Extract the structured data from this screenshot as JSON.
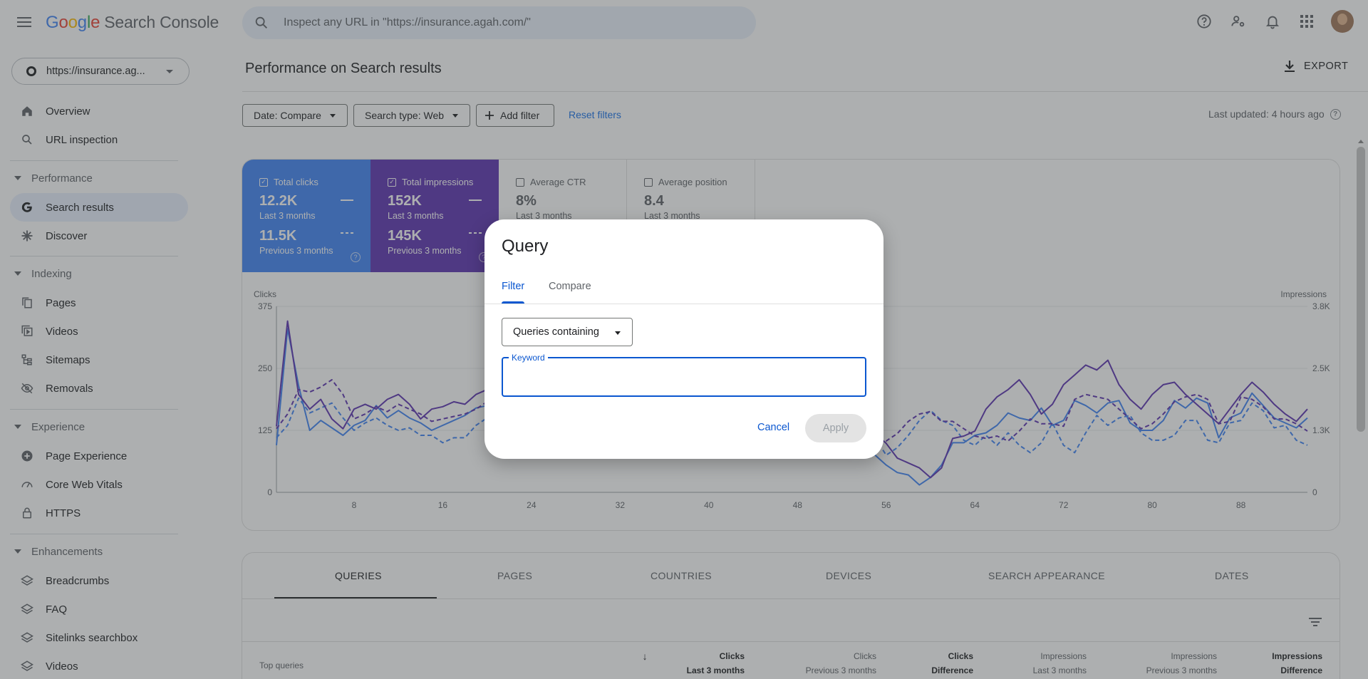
{
  "header": {
    "logo_google": [
      "G",
      "o",
      "o",
      "g",
      "l",
      "e"
    ],
    "product": "Search Console",
    "search_placeholder": "Inspect any URL in \"https://insurance.agah.com/\"",
    "icons": [
      "help-icon",
      "manage-users-icon",
      "notifications-icon",
      "apps-grid-icon"
    ]
  },
  "sidebar": {
    "property": "https://insurance.ag...",
    "top_items": [
      {
        "label": "Overview",
        "icon": "home-icon"
      },
      {
        "label": "URL inspection",
        "icon": "search-icon"
      }
    ],
    "sections": [
      {
        "title": "Performance",
        "items": [
          {
            "label": "Search results",
            "icon": "google-g-icon",
            "active": true
          },
          {
            "label": "Discover",
            "icon": "discover-asterisk-icon"
          }
        ]
      },
      {
        "title": "Indexing",
        "items": [
          {
            "label": "Pages",
            "icon": "pages-icon"
          },
          {
            "label": "Videos",
            "icon": "video-icon"
          },
          {
            "label": "Sitemaps",
            "icon": "sitemap-icon"
          },
          {
            "label": "Removals",
            "icon": "removals-eye-icon"
          }
        ]
      },
      {
        "title": "Experience",
        "items": [
          {
            "label": "Page Experience",
            "icon": "plus-circle-icon"
          },
          {
            "label": "Core Web Vitals",
            "icon": "speedometer-icon"
          },
          {
            "label": "HTTPS",
            "icon": "lock-icon"
          }
        ]
      },
      {
        "title": "Enhancements",
        "items": [
          {
            "label": "Breadcrumbs",
            "icon": "layers-icon"
          },
          {
            "label": "FAQ",
            "icon": "layers-icon"
          },
          {
            "label": "Sitelinks searchbox",
            "icon": "layers-icon"
          },
          {
            "label": "Videos",
            "icon": "layers-icon"
          }
        ]
      }
    ]
  },
  "main": {
    "title": "Performance on Search results",
    "export_label": "EXPORT",
    "filters": {
      "date": "Date: Compare",
      "search_type": "Search type: Web",
      "add_filter": "Add filter",
      "reset": "Reset filters",
      "last_updated": "Last updated: 4 hours ago"
    },
    "metrics": {
      "clicks": {
        "label": "Total clicks",
        "current": "12.2K",
        "current_period": "Last 3 months",
        "previous": "11.5K",
        "previous_period": "Previous 3 months",
        "color": "#4285f4"
      },
      "impressions": {
        "label": "Total impressions",
        "current": "152K",
        "current_period": "Last 3 months",
        "previous": "145K",
        "previous_period": "Previous 3 months",
        "color": "#5e35b1"
      },
      "ctr": {
        "label": "Average CTR",
        "current": "8%",
        "current_period": "Last 3 months"
      },
      "position": {
        "label": "Average position",
        "current": "8.4",
        "current_period": "Last 3 months"
      }
    }
  },
  "chart_data": {
    "type": "line",
    "left_axis_label": "Clicks",
    "right_axis_label": "Impressions",
    "y_ticks": [
      "375",
      "250",
      "125",
      "0"
    ],
    "y2_ticks": [
      "3.8K",
      "2.5K",
      "1.3K",
      "0"
    ],
    "ylim": [
      0,
      375
    ],
    "y2lim": [
      0,
      3800
    ],
    "x_ticks": [
      8,
      16,
      24,
      32,
      40,
      48,
      56,
      64,
      72,
      80,
      88
    ],
    "xlim": [
      1,
      94
    ],
    "series": [
      {
        "key": "clicks_current",
        "color": "#4285f4",
        "dashed": false,
        "axis": "left",
        "points": [
          [
            1,
            95
          ],
          [
            2,
            330
          ],
          [
            3,
            215
          ],
          [
            4,
            125
          ],
          [
            5,
            145
          ],
          [
            6,
            130
          ],
          [
            7,
            115
          ],
          [
            8,
            135
          ],
          [
            9,
            145
          ],
          [
            10,
            175
          ],
          [
            11,
            150
          ],
          [
            12,
            165
          ],
          [
            13,
            150
          ],
          [
            14,
            140
          ],
          [
            15,
            125
          ],
          [
            16,
            135
          ],
          [
            17,
            145
          ],
          [
            18,
            155
          ],
          [
            19,
            170
          ],
          [
            20,
            175
          ],
          [
            53,
            150
          ],
          [
            54,
            110
          ],
          [
            55,
            75
          ],
          [
            56,
            55
          ],
          [
            57,
            40
          ],
          [
            58,
            35
          ],
          [
            59,
            15
          ],
          [
            60,
            30
          ],
          [
            61,
            55
          ],
          [
            62,
            100
          ],
          [
            63,
            100
          ],
          [
            64,
            115
          ],
          [
            65,
            120
          ],
          [
            66,
            135
          ],
          [
            67,
            160
          ],
          [
            68,
            150
          ],
          [
            69,
            145
          ],
          [
            70,
            170
          ],
          [
            71,
            135
          ],
          [
            72,
            145
          ],
          [
            73,
            185
          ],
          [
            74,
            175
          ],
          [
            75,
            160
          ],
          [
            76,
            180
          ],
          [
            77,
            185
          ],
          [
            78,
            140
          ],
          [
            79,
            125
          ],
          [
            80,
            125
          ],
          [
            81,
            145
          ],
          [
            82,
            185
          ],
          [
            83,
            170
          ],
          [
            84,
            190
          ],
          [
            85,
            180
          ],
          [
            86,
            110
          ],
          [
            87,
            150
          ],
          [
            88,
            160
          ],
          [
            89,
            200
          ],
          [
            90,
            175
          ],
          [
            91,
            150
          ],
          [
            92,
            140
          ],
          [
            93,
            130
          ],
          [
            94,
            150
          ]
        ]
      },
      {
        "key": "clicks_previous",
        "color": "#4285f4",
        "dashed": true,
        "axis": "left",
        "points": [
          [
            1,
            110
          ],
          [
            2,
            135
          ],
          [
            3,
            190
          ],
          [
            4,
            160
          ],
          [
            5,
            170
          ],
          [
            6,
            180
          ],
          [
            7,
            150
          ],
          [
            8,
            125
          ],
          [
            9,
            140
          ],
          [
            10,
            150
          ],
          [
            11,
            135
          ],
          [
            12,
            125
          ],
          [
            13,
            130
          ],
          [
            14,
            115
          ],
          [
            15,
            115
          ],
          [
            16,
            100
          ],
          [
            17,
            110
          ],
          [
            18,
            110
          ],
          [
            19,
            135
          ],
          [
            20,
            150
          ],
          [
            53,
            145
          ],
          [
            54,
            130
          ],
          [
            55,
            110
          ],
          [
            56,
            75
          ],
          [
            57,
            90
          ],
          [
            58,
            115
          ],
          [
            59,
            145
          ],
          [
            60,
            165
          ],
          [
            61,
            145
          ],
          [
            62,
            135
          ],
          [
            63,
            105
          ],
          [
            64,
            95
          ],
          [
            65,
            115
          ],
          [
            66,
            95
          ],
          [
            67,
            120
          ],
          [
            68,
            95
          ],
          [
            69,
            80
          ],
          [
            70,
            100
          ],
          [
            71,
            140
          ],
          [
            72,
            95
          ],
          [
            73,
            80
          ],
          [
            74,
            120
          ],
          [
            75,
            155
          ],
          [
            76,
            135
          ],
          [
            77,
            150
          ],
          [
            78,
            155
          ],
          [
            79,
            120
          ],
          [
            80,
            105
          ],
          [
            81,
            105
          ],
          [
            82,
            115
          ],
          [
            83,
            145
          ],
          [
            84,
            145
          ],
          [
            85,
            105
          ],
          [
            86,
            100
          ],
          [
            87,
            140
          ],
          [
            88,
            145
          ],
          [
            89,
            180
          ],
          [
            90,
            165
          ],
          [
            91,
            130
          ],
          [
            92,
            135
          ],
          [
            93,
            105
          ],
          [
            94,
            95
          ]
        ]
      },
      {
        "key": "impressions_current",
        "color": "#5e35b1",
        "dashed": false,
        "axis": "right",
        "points": [
          [
            1,
            1350
          ],
          [
            2,
            3500
          ],
          [
            3,
            2000
          ],
          [
            4,
            1700
          ],
          [
            5,
            1900
          ],
          [
            6,
            1500
          ],
          [
            7,
            1300
          ],
          [
            8,
            1700
          ],
          [
            9,
            1800
          ],
          [
            10,
            1700
          ],
          [
            11,
            1900
          ],
          [
            12,
            2000
          ],
          [
            13,
            1800
          ],
          [
            14,
            1500
          ],
          [
            15,
            1700
          ],
          [
            16,
            1750
          ],
          [
            17,
            1850
          ],
          [
            18,
            1800
          ],
          [
            19,
            2000
          ],
          [
            20,
            2100
          ],
          [
            53,
            1500
          ],
          [
            54,
            1400
          ],
          [
            55,
            1200
          ],
          [
            56,
            1000
          ],
          [
            57,
            700
          ],
          [
            58,
            600
          ],
          [
            59,
            500
          ],
          [
            60,
            300
          ],
          [
            61,
            500
          ],
          [
            62,
            1100
          ],
          [
            63,
            1150
          ],
          [
            64,
            1250
          ],
          [
            65,
            1700
          ],
          [
            66,
            1950
          ],
          [
            67,
            2100
          ],
          [
            68,
            2300
          ],
          [
            69,
            2000
          ],
          [
            70,
            1600
          ],
          [
            71,
            1800
          ],
          [
            72,
            2200
          ],
          [
            73,
            2400
          ],
          [
            74,
            2600
          ],
          [
            75,
            2500
          ],
          [
            76,
            2700
          ],
          [
            77,
            2200
          ],
          [
            78,
            1900
          ],
          [
            79,
            1700
          ],
          [
            80,
            2000
          ],
          [
            81,
            2200
          ],
          [
            82,
            2250
          ],
          [
            83,
            2000
          ],
          [
            84,
            1800
          ],
          [
            85,
            1600
          ],
          [
            86,
            1400
          ],
          [
            87,
            1700
          ],
          [
            88,
            2000
          ],
          [
            89,
            2250
          ],
          [
            90,
            2050
          ],
          [
            91,
            1800
          ],
          [
            92,
            1600
          ],
          [
            93,
            1450
          ],
          [
            94,
            1700
          ]
        ]
      },
      {
        "key": "impressions_previous",
        "color": "#5e35b1",
        "dashed": true,
        "axis": "right",
        "points": [
          [
            1,
            1300
          ],
          [
            2,
            1600
          ],
          [
            3,
            2100
          ],
          [
            4,
            2050
          ],
          [
            5,
            2150
          ],
          [
            6,
            2300
          ],
          [
            7,
            2000
          ],
          [
            8,
            1500
          ],
          [
            9,
            1600
          ],
          [
            10,
            1750
          ],
          [
            11,
            1650
          ],
          [
            12,
            1800
          ],
          [
            13,
            1700
          ],
          [
            14,
            1600
          ],
          [
            15,
            1450
          ],
          [
            16,
            1500
          ],
          [
            17,
            1550
          ],
          [
            18,
            1600
          ],
          [
            19,
            1700
          ],
          [
            20,
            1850
          ],
          [
            53,
            1500
          ],
          [
            54,
            1450
          ],
          [
            55,
            1100
          ],
          [
            56,
            1050
          ],
          [
            57,
            1200
          ],
          [
            58,
            1450
          ],
          [
            59,
            1600
          ],
          [
            60,
            1650
          ],
          [
            61,
            1450
          ],
          [
            62,
            1450
          ],
          [
            63,
            1300
          ],
          [
            64,
            1150
          ],
          [
            65,
            1100
          ],
          [
            66,
            1150
          ],
          [
            67,
            1050
          ],
          [
            68,
            1250
          ],
          [
            69,
            1500
          ],
          [
            70,
            1400
          ],
          [
            71,
            1400
          ],
          [
            72,
            1350
          ],
          [
            73,
            1900
          ],
          [
            74,
            2000
          ],
          [
            75,
            1950
          ],
          [
            76,
            1900
          ],
          [
            77,
            1700
          ],
          [
            78,
            1500
          ],
          [
            79,
            1300
          ],
          [
            80,
            1400
          ],
          [
            81,
            1600
          ],
          [
            82,
            1850
          ],
          [
            83,
            1950
          ],
          [
            84,
            2000
          ],
          [
            85,
            1900
          ],
          [
            86,
            1400
          ],
          [
            87,
            1450
          ],
          [
            88,
            1950
          ],
          [
            89,
            1900
          ],
          [
            90,
            1750
          ],
          [
            91,
            1500
          ],
          [
            92,
            1500
          ],
          [
            93,
            1400
          ],
          [
            94,
            1250
          ]
        ]
      }
    ]
  },
  "table": {
    "tabs": [
      "QUERIES",
      "PAGES",
      "COUNTRIES",
      "DEVICES",
      "SEARCH APPEARANCE",
      "DATES"
    ],
    "top_queries_label": "Top queries",
    "columns": [
      {
        "line1": "Clicks",
        "line2": "Last 3 months",
        "sorted": true
      },
      {
        "line1": "Clicks",
        "line2": "Previous 3 months"
      },
      {
        "line1": "Clicks",
        "line2": "Difference"
      },
      {
        "line1": "Impressions",
        "line2": "Last 3 months"
      },
      {
        "line1": "Impressions",
        "line2": "Previous 3 months"
      },
      {
        "line1": "Impressions",
        "line2": "Difference"
      }
    ]
  },
  "dialog": {
    "title": "Query",
    "tabs": [
      "Filter",
      "Compare"
    ],
    "select_value": "Queries containing",
    "keyword_label": "Keyword",
    "keyword_value": "",
    "cancel": "Cancel",
    "apply": "Apply"
  }
}
